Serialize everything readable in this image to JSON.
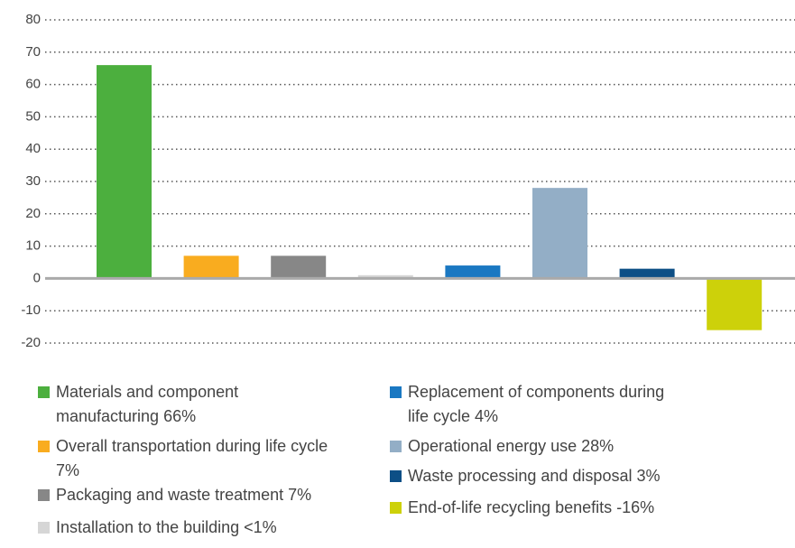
{
  "chart_data": {
    "type": "bar",
    "categories": [
      null,
      null,
      null,
      null,
      null,
      null,
      null,
      null
    ],
    "values": [
      66,
      7,
      7,
      1,
      4,
      28,
      3,
      -16
    ],
    "colors": [
      "#4caf3e",
      "#f9ac1f",
      "#878787",
      "#d6d6d6",
      "#1a78c2",
      "#93aec6",
      "#0d4f86",
      "#cdd10a"
    ],
    "legend": [
      "Materials and component manufacturing 66%",
      "Overall transportation during life cycle 7%",
      "Packaging and waste treatment 7%",
      "Installation to the building <1%",
      "Replacement of components during life cycle 4%",
      "Operational energy use 28%",
      "Waste processing and disposal 3%",
      "End-of-life recycling benefits -16%"
    ],
    "ylim": [
      -20,
      80
    ],
    "yticks": [
      -20,
      -10,
      0,
      10,
      20,
      30,
      40,
      50,
      60,
      70,
      80
    ],
    "grid": true
  }
}
